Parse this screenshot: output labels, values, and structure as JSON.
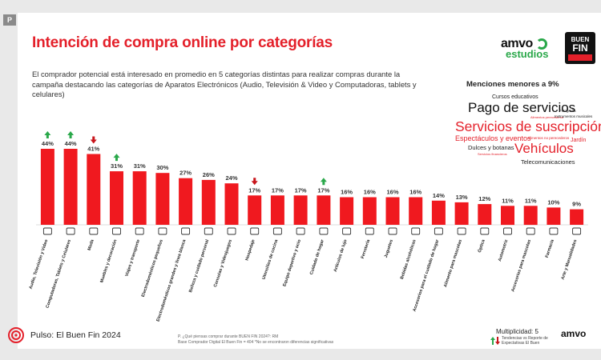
{
  "badge": "P",
  "title": "Intención de compra online por categorías",
  "subtitle": "El comprador potencial está interesado en promedio en 5 categorías distintas para realizar compras durante la campaña destacando las categorías de Aparatos Electrónicos (Audio, Televisión & Video y Computadoras, tablets y celulares)",
  "logos": {
    "amvo": "amvo",
    "estudios": "estudios",
    "bf_l1": "BUEN",
    "bf_l2": "FIN"
  },
  "menciones": {
    "title": "Menciones menores a 9%",
    "words": [
      {
        "text": "Cursos educativos",
        "color": "#222222"
      },
      {
        "text": "Pago de servicios",
        "color": "#111111"
      },
      {
        "text": "Servicios de suscripción",
        "color": "#e4202a"
      },
      {
        "text": "Espectáculos y eventos",
        "color": "#e4202a"
      },
      {
        "text": "Vehículos",
        "color": "#e4202a"
      },
      {
        "text": "Dulces y botanas",
        "color": "#222222"
      },
      {
        "text": "Telecomunicaciones",
        "color": "#222222"
      },
      {
        "text": "Alimentos perecederos",
        "color": "#e4202a"
      },
      {
        "text": "Fotografía",
        "color": "#222222"
      },
      {
        "text": "Instrumentos musicales",
        "color": "#222222"
      },
      {
        "text": "Jardín",
        "color": "#e4202a"
      },
      {
        "text": "Alimentos no perecederos",
        "color": "#e4202a"
      },
      {
        "text": "Servicios financieros",
        "color": "#e4202a"
      }
    ]
  },
  "chart_data": {
    "type": "bar",
    "title": "Intención de compra online por categorías",
    "categories": [
      "Audio, Televisión y Video",
      "Computadoras, Tablets y Celulares",
      "Moda",
      "Muebles y decoración",
      "Viajes y transporte",
      "Electrodomésticos pequeños",
      "Electrodomésticos grandes y línea blanca",
      "Belleza y cuidado personal",
      "Consolas y Videojuegos",
      "Hospedaje",
      "Utensilios de cocina",
      "Equipo deportivo y ocio",
      "Cuidado de hogar",
      "Artículos de lujo",
      "Ferretería",
      "Juguetes",
      "Bebidas alcohólicas",
      "Accesorios para el cuidado de hogar",
      "Alimento para mascotas",
      "Óptica",
      "Automotriz",
      "Accesorios para mascotas",
      "Farmacia",
      "Arte y Manualidades"
    ],
    "values": [
      44,
      44,
      41,
      31,
      31,
      30,
      27,
      26,
      24,
      17,
      17,
      17,
      17,
      16,
      16,
      16,
      16,
      14,
      13,
      12,
      11,
      11,
      10,
      9
    ],
    "value_labels": [
      "44%",
      "44%",
      "41%",
      "31%",
      "31%",
      "30%",
      "27%",
      "26%",
      "24%",
      "17%",
      "17%",
      "17%",
      "17%",
      "16%",
      "16%",
      "16%",
      "16%",
      "14%",
      "13%",
      "12%",
      "11%",
      "11%",
      "10%",
      "9%"
    ],
    "trends": [
      "up",
      "up",
      "down",
      "up",
      "",
      "",
      "",
      "",
      "",
      "down",
      "",
      "",
      "up",
      "",
      "",
      "",
      "",
      "",
      "",
      "",
      "",
      "",
      "",
      ""
    ],
    "bar_color": "#f0191f",
    "trend_up_color": "#2aa84a",
    "trend_down_color": "#c8151b",
    "ylim": [
      0,
      50
    ]
  },
  "multiplicidad": "Multiplicidad: 5",
  "footer": {
    "pulso": "Pulso: El Buen Fin 2024",
    "note1": "P. ¿Qué piensas comprar durante BUEN FIN 2024?: RM",
    "note2": "Base Comprador Digital El Buen Fin = 404   *No se encontraron diferencias significativas",
    "legend": "Tendencias vs Reporte de Expectativas El Buen",
    "amvo": "amvo"
  }
}
